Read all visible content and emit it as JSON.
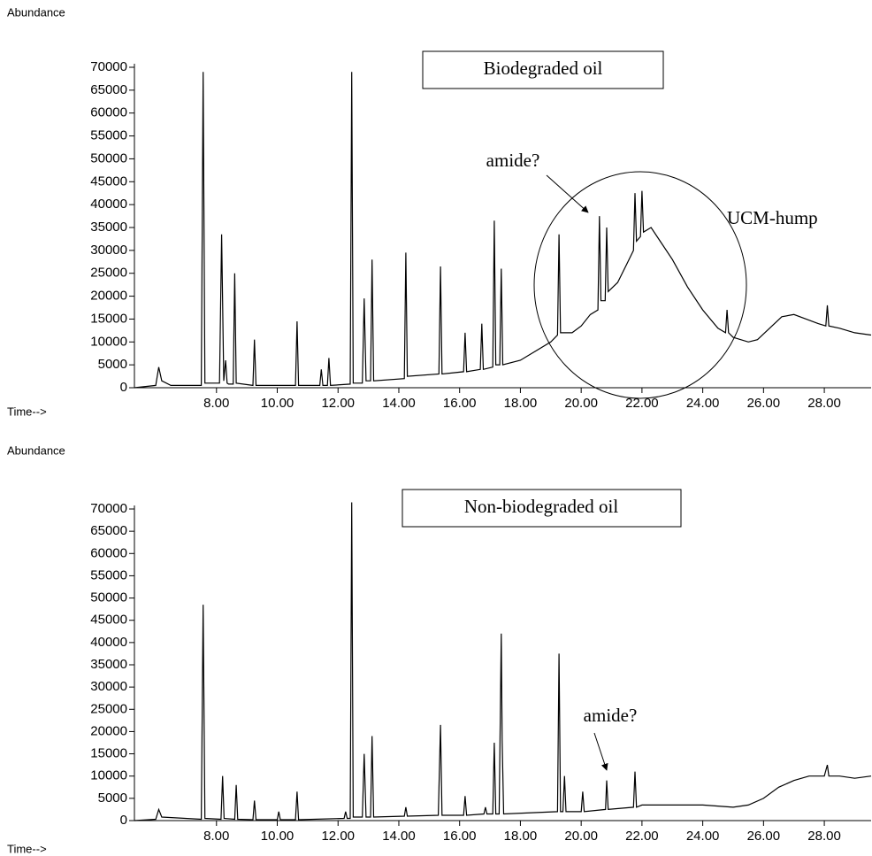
{
  "chart_data": [
    {
      "type": "line",
      "title": "Biodegraded oil",
      "ylabel": "Abundance",
      "xlabel": "Time-->",
      "color": "#000000",
      "annotations": [
        "amide?",
        "UCM-hump"
      ],
      "xlim": [
        5.3,
        29.54
      ],
      "ylim": [
        0,
        70000
      ],
      "yticks": [
        0,
        5000,
        10000,
        15000,
        20000,
        25000,
        30000,
        35000,
        40000,
        45000,
        50000,
        55000,
        60000,
        65000,
        70000
      ],
      "xticks": [
        {
          "value": 8,
          "label": "8.00"
        },
        {
          "value": 10,
          "label": "10.00"
        },
        {
          "value": 12,
          "label": "12.00"
        },
        {
          "value": 14,
          "label": "14.00"
        },
        {
          "value": 16,
          "label": "16.00"
        },
        {
          "value": 18,
          "label": "18.00"
        },
        {
          "value": 20,
          "label": "20.00"
        },
        {
          "value": 22,
          "label": "22.00"
        },
        {
          "value": 24,
          "label": "24.00"
        },
        {
          "value": 26,
          "label": "26.00"
        },
        {
          "value": 28,
          "label": "28.00"
        }
      ],
      "x": [
        5.3,
        6.0,
        6.1,
        6.2,
        6.5,
        7.5,
        7.56,
        7.62,
        8.1,
        8.17,
        8.24,
        8.3,
        8.35,
        8.4,
        8.55,
        8.6,
        8.65,
        9.2,
        9.25,
        9.3,
        10.6,
        10.65,
        10.7,
        11.4,
        11.45,
        11.5,
        11.65,
        11.7,
        11.75,
        12.4,
        12.45,
        12.5,
        12.8,
        12.86,
        12.92,
        13.07,
        13.12,
        13.17,
        14.18,
        14.23,
        14.28,
        15.32,
        15.37,
        15.42,
        16.13,
        16.18,
        16.23,
        16.68,
        16.73,
        16.78,
        17.09,
        17.14,
        17.19,
        17.32,
        17.37,
        17.42,
        18.0,
        18.5,
        19.0,
        19.22,
        19.27,
        19.32,
        19.7,
        20.0,
        20.3,
        20.55,
        20.6,
        20.65,
        20.79,
        20.84,
        20.89,
        21.2,
        21.5,
        21.72,
        21.77,
        21.82,
        21.95,
        22.0,
        22.05,
        22.3,
        22.6,
        23.0,
        23.5,
        24.0,
        24.5,
        24.75,
        24.8,
        24.85,
        25.0,
        25.5,
        25.8,
        26.2,
        26.6,
        27.0,
        27.4,
        27.8,
        28.05,
        28.1,
        28.15,
        28.5,
        29.0,
        29.54
      ],
      "values": [
        0,
        500,
        4500,
        1500,
        500,
        500,
        69000,
        1000,
        1000,
        33500,
        1500,
        6000,
        1000,
        800,
        800,
        25000,
        1000,
        500,
        10500,
        500,
        500,
        14500,
        500,
        500,
        4000,
        500,
        500,
        6500,
        500,
        800,
        69000,
        1000,
        1000,
        19500,
        1500,
        1500,
        28000,
        1500,
        2000,
        29500,
        2500,
        3000,
        26500,
        3000,
        3500,
        12000,
        3500,
        4000,
        14000,
        4000,
        4500,
        36500,
        5000,
        5000,
        26000,
        5000,
        6000,
        8000,
        10000,
        11500,
        33500,
        12000,
        12000,
        13500,
        16000,
        17000,
        37500,
        19000,
        19000,
        35000,
        21000,
        23000,
        27000,
        30000,
        42500,
        32000,
        33000,
        43000,
        34000,
        35000,
        32000,
        28000,
        22000,
        17000,
        13000,
        12000,
        17000,
        12000,
        11000,
        10000,
        10500,
        13000,
        15500,
        16000,
        15000,
        14000,
        13500,
        18000,
        13500,
        13000,
        12000,
        11500
      ]
    },
    {
      "type": "line",
      "title": "Non-biodegraded oil",
      "ylabel": "Abundance",
      "xlabel": "Time-->",
      "color": "#000000",
      "annotations": [
        "amide?"
      ],
      "xlim": [
        5.3,
        29.54
      ],
      "ylim": [
        0,
        70000
      ],
      "yticks": [
        0,
        5000,
        10000,
        15000,
        20000,
        25000,
        30000,
        35000,
        40000,
        45000,
        50000,
        55000,
        60000,
        65000,
        70000
      ],
      "xticks": [
        {
          "value": 8,
          "label": "8.00"
        },
        {
          "value": 10,
          "label": "10.00"
        },
        {
          "value": 12,
          "label": "12.00"
        },
        {
          "value": 14,
          "label": "14.00"
        },
        {
          "value": 16,
          "label": "16.00"
        },
        {
          "value": 18,
          "label": "18.00"
        },
        {
          "value": 20,
          "label": "20.00"
        },
        {
          "value": 22,
          "label": "22.00"
        },
        {
          "value": 24,
          "label": "24.00"
        },
        {
          "value": 26,
          "label": "26.00"
        },
        {
          "value": 28,
          "label": "28.00"
        }
      ],
      "x": [
        5.3,
        6.0,
        6.1,
        6.2,
        7.5,
        7.56,
        7.62,
        8.15,
        8.2,
        8.25,
        8.6,
        8.65,
        8.7,
        9.2,
        9.25,
        9.3,
        10.0,
        10.05,
        10.1,
        10.6,
        10.65,
        10.7,
        12.2,
        12.25,
        12.3,
        12.4,
        12.45,
        12.5,
        12.8,
        12.86,
        12.92,
        13.07,
        13.12,
        13.17,
        14.18,
        14.23,
        14.28,
        15.3,
        15.37,
        15.42,
        16.13,
        16.18,
        16.23,
        16.8,
        16.85,
        16.9,
        17.09,
        17.14,
        17.19,
        17.3,
        17.37,
        17.4,
        17.45,
        19.22,
        19.27,
        19.32,
        19.4,
        19.45,
        19.5,
        20.0,
        20.05,
        20.1,
        20.8,
        20.84,
        20.89,
        21.72,
        21.77,
        21.82,
        22.0,
        22.3,
        23.0,
        24.0,
        25.0,
        25.5,
        26.0,
        26.5,
        27.0,
        27.5,
        28.0,
        28.1,
        28.15,
        28.5,
        29.0,
        29.54
      ],
      "values": [
        0,
        300,
        2500,
        800,
        300,
        48500,
        500,
        300,
        10000,
        500,
        300,
        8000,
        300,
        200,
        4500,
        200,
        200,
        2000,
        200,
        200,
        6500,
        200,
        500,
        2000,
        500,
        500,
        71500,
        800,
        800,
        15000,
        800,
        800,
        19000,
        800,
        1000,
        3000,
        1000,
        1200,
        21500,
        1200,
        1200,
        5500,
        1200,
        1500,
        3000,
        1500,
        1500,
        17500,
        1500,
        1500,
        42000,
        18000,
        1500,
        2000,
        37500,
        2000,
        2000,
        10000,
        2000,
        2000,
        6500,
        2000,
        2500,
        9000,
        2500,
        3000,
        11000,
        3000,
        3500,
        3500,
        3500,
        3500,
        3000,
        3500,
        5000,
        7500,
        9000,
        10000,
        10000,
        12500,
        10000,
        10000,
        9500,
        10000
      ]
    }
  ]
}
